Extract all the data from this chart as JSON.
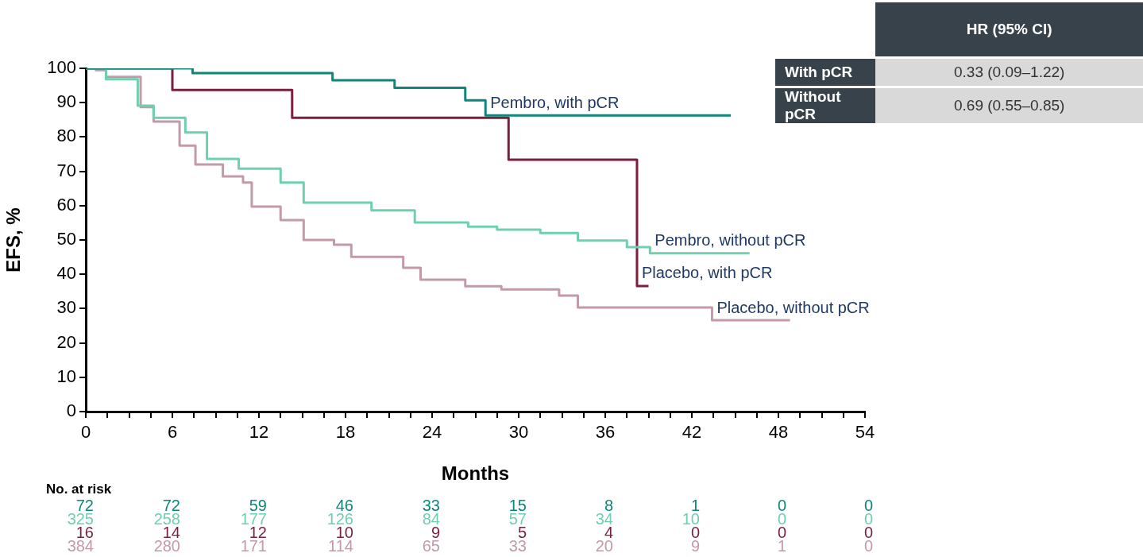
{
  "chart_data": {
    "type": "step",
    "xlabel": "Months",
    "ylabel": "EFS, %",
    "xlim": [
      0,
      54
    ],
    "xticks": [
      0,
      {
        "value": 1.5,
        "label": null
      },
      {
        "value": 3,
        "label": null
      },
      {
        "value": 4.5,
        "label": null
      },
      6,
      {
        "value": 7.5,
        "label": null
      },
      {
        "value": 9,
        "label": null
      },
      {
        "value": 10.5,
        "label": null
      },
      12,
      {
        "value": 13.5,
        "label": null
      },
      {
        "value": 15,
        "label": null
      },
      {
        "value": 16.5,
        "label": null
      },
      18,
      {
        "value": 19.5,
        "label": null
      },
      {
        "value": 21,
        "label": null
      },
      {
        "value": 22.5,
        "label": null
      },
      24,
      {
        "value": 25.5,
        "label": null
      },
      {
        "value": 27,
        "label": null
      },
      {
        "value": 28.5,
        "label": null
      },
      30,
      {
        "value": 31.5,
        "label": null
      },
      {
        "value": 33,
        "label": null
      },
      {
        "value": 34.5,
        "label": null
      },
      36,
      {
        "value": 37.5,
        "label": null
      },
      {
        "value": 39,
        "label": null
      },
      {
        "value": 40.5,
        "label": null
      },
      42,
      {
        "value": 43.5,
        "label": null
      },
      {
        "value": 45,
        "label": null
      },
      {
        "value": 46.5,
        "label": null
      },
      48,
      {
        "value": 49.5,
        "label": null
      },
      {
        "value": 51,
        "label": null
      },
      {
        "value": 52.5,
        "label": null
      },
      54
    ],
    "ylim": [
      0,
      100
    ],
    "yticks": [
      0,
      10,
      20,
      30,
      40,
      50,
      60,
      70,
      80,
      90,
      100
    ],
    "grid": false,
    "legend": false,
    "marker": "none",
    "line_style": "solid",
    "series": [
      {
        "name": "Pembro, with pCR",
        "color": "#0e877a",
        "x": [
          0,
          7.4,
          17.1,
          21.4,
          26.3,
          27.7,
          44.7
        ],
        "values": [
          100,
          98.6,
          96.5,
          94.3,
          90.7,
          86.3,
          86.3
        ]
      },
      {
        "name": "Pembro, without pCR",
        "color": "#6fcfb0",
        "x": [
          0,
          1.4,
          3.6,
          4.7,
          6.9,
          8.4,
          10.6,
          13.5,
          15.1,
          19.8,
          22.8,
          26.5,
          28.5,
          31.5,
          34.1,
          37.5,
          39.1,
          46.0
        ],
        "values": [
          100,
          96.8,
          89.1,
          85.6,
          81.3,
          73.6,
          70.8,
          66.7,
          60.9,
          58.6,
          55.1,
          53.9,
          53.0,
          52.0,
          49.8,
          47.9,
          46.1,
          46.1
        ]
      },
      {
        "name": "Placebo, with pCR",
        "color": "#7b1f3f",
        "x": [
          0,
          6.0,
          14.3,
          29.3,
          38.2,
          39.0
        ],
        "values": [
          100,
          93.7,
          85.6,
          73.4,
          36.6,
          36.6
        ]
      },
      {
        "name": "Placebo, without pCR",
        "color": "#c29aa9",
        "x": [
          0,
          0.7,
          1.4,
          3.8,
          4.7,
          6.5,
          7.6,
          9.5,
          10.9,
          11.5,
          13.5,
          15.1,
          17.2,
          18.4,
          22.0,
          23.2,
          26.3,
          28.8,
          32.8,
          34.1,
          43.4,
          48.8
        ],
        "values": [
          100,
          99.5,
          97.5,
          88.7,
          84.5,
          77.5,
          72.0,
          68.5,
          66.7,
          59.7,
          55.8,
          50.0,
          48.6,
          45.1,
          41.9,
          38.4,
          36.5,
          35.6,
          33.8,
          30.3,
          26.6,
          26.6
        ]
      }
    ],
    "annotations": [
      "No. at risk",
      "72 72 59 46 33 15 8 1 0 0",
      "325 258 177 126 84 57 34 10 0 0",
      "16 14 12 10 9 5 4 0 0 0",
      "384 280 171 114 65 33 20 9 1 0",
      "HR (95% CI)",
      "With pCR",
      "0.33 (0.09–1.22)",
      "Without pCR",
      "0.69 (0.55–0.85)"
    ]
  }
}
